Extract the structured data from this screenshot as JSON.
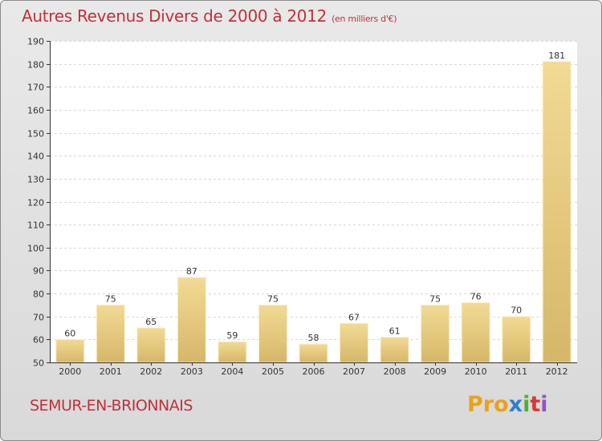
{
  "title": "Autres Revenus Divers de 2000 à 2012",
  "subtitle": "(en milliers d'€)",
  "commune": "SEMUR-EN-BRIONNAIS",
  "logo": [
    "Pro",
    "x",
    "i",
    "t",
    "i"
  ],
  "colors": {
    "title": "#c0313b",
    "bar_light": "#f2da95",
    "bar_dark": "#d6b768",
    "plot_background": "#ffffff",
    "grid": "#d8d8d8"
  },
  "chart_data": {
    "type": "bar",
    "categories": [
      "2000",
      "2001",
      "2002",
      "2003",
      "2004",
      "2005",
      "2006",
      "2007",
      "2008",
      "2009",
      "2010",
      "2011",
      "2012"
    ],
    "values": [
      60,
      75,
      65,
      87,
      59,
      75,
      58,
      67,
      61,
      75,
      76,
      70,
      181
    ],
    "ylim": [
      50,
      190
    ],
    "yticks": [
      50,
      60,
      70,
      80,
      90,
      100,
      110,
      120,
      130,
      140,
      150,
      160,
      170,
      180,
      190
    ],
    "grid": true,
    "xlabel": "",
    "ylabel": ""
  }
}
